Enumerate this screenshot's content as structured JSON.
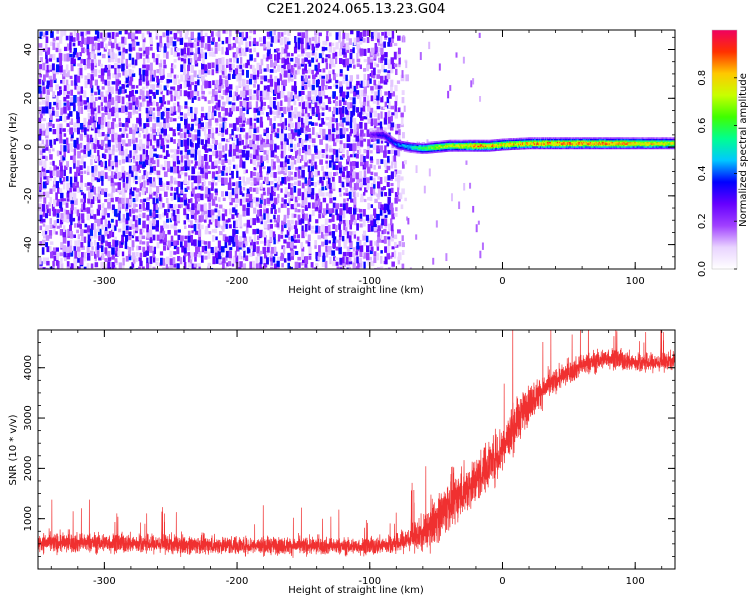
{
  "title": "C2E1.2024.065.13.23.G04",
  "chart_data": [
    {
      "type": "heatmap",
      "xlabel": "Height of straight line (km)",
      "ylabel": "Frequency (Hz)",
      "xlim": [
        -350,
        130
      ],
      "ylim": [
        -50,
        48
      ],
      "xticks": [
        -300,
        -200,
        -100,
        0,
        100
      ],
      "yticks": [
        -40,
        -20,
        0,
        20,
        40
      ],
      "colorbar": {
        "label": "Normalized spectral amplitude",
        "range": [
          0,
          1
        ],
        "ticks": [
          0.0,
          0.2,
          0.4,
          0.6,
          0.8
        ],
        "colormap": [
          "#ffffff",
          "#e9d3ff",
          "#a040ff",
          "#6600ff",
          "#0000ff",
          "#00c8ff",
          "#00ff90",
          "#40ff00",
          "#c8ff00",
          "#ffc800",
          "#ff3000",
          "#f00060"
        ]
      },
      "signal_track": [
        {
          "x": -100,
          "freq": 5.0,
          "amp": 0.25
        },
        {
          "x": -90,
          "freq": 5.0,
          "amp": 0.35
        },
        {
          "x": -80,
          "freq": 1.0,
          "amp": 0.4
        },
        {
          "x": -70,
          "freq": 0.0,
          "amp": 0.5
        },
        {
          "x": -60,
          "freq": -0.5,
          "amp": 0.6
        },
        {
          "x": -50,
          "freq": 0.0,
          "amp": 0.7
        },
        {
          "x": -40,
          "freq": 0.5,
          "amp": 0.72
        },
        {
          "x": -30,
          "freq": 0.5,
          "amp": 0.75
        },
        {
          "x": -20,
          "freq": 0.5,
          "amp": 0.85
        },
        {
          "x": -10,
          "freq": 0.5,
          "amp": 0.8
        },
        {
          "x": 0,
          "freq": 1.0,
          "amp": 0.78
        },
        {
          "x": 20,
          "freq": 1.5,
          "amp": 0.82
        },
        {
          "x": 40,
          "freq": 1.5,
          "amp": 0.85
        },
        {
          "x": 60,
          "freq": 1.5,
          "amp": 0.85
        },
        {
          "x": 80,
          "freq": 1.5,
          "amp": 0.85
        },
        {
          "x": 100,
          "freq": 1.5,
          "amp": 0.82
        },
        {
          "x": 120,
          "freq": 1.5,
          "amp": 0.78
        },
        {
          "x": 130,
          "freq": 1.5,
          "amp": 0.72
        }
      ],
      "noise_region": [
        -350,
        -85
      ]
    },
    {
      "type": "line",
      "xlabel": "Height of straight line (km)",
      "ylabel": "SNR (10 * v/v)",
      "xlim": [
        -350,
        130
      ],
      "ylim": [
        0,
        4750
      ],
      "xticks": [
        -300,
        -200,
        -100,
        0,
        100
      ],
      "yticks": [
        1000,
        2000,
        3000,
        4000
      ],
      "series": [
        {
          "color": "#f03030",
          "envelope": [
            {
              "x": -350,
              "mean": 520,
              "spread": 260
            },
            {
              "x": -300,
              "mean": 520,
              "spread": 260
            },
            {
              "x": -250,
              "mean": 490,
              "spread": 250
            },
            {
              "x": -200,
              "mean": 470,
              "spread": 240
            },
            {
              "x": -150,
              "mean": 460,
              "spread": 230
            },
            {
              "x": -120,
              "mean": 450,
              "spread": 220
            },
            {
              "x": -100,
              "mean": 450,
              "spread": 230
            },
            {
              "x": -80,
              "mean": 500,
              "spread": 260
            },
            {
              "x": -60,
              "mean": 700,
              "spread": 450
            },
            {
              "x": -50,
              "mean": 1000,
              "spread": 650
            },
            {
              "x": -40,
              "mean": 1300,
              "spread": 700
            },
            {
              "x": -30,
              "mean": 1550,
              "spread": 650
            },
            {
              "x": -20,
              "mean": 1750,
              "spread": 650
            },
            {
              "x": -10,
              "mean": 2100,
              "spread": 650
            },
            {
              "x": 0,
              "mean": 2400,
              "spread": 700
            },
            {
              "x": 10,
              "mean": 2900,
              "spread": 600
            },
            {
              "x": 20,
              "mean": 3300,
              "spread": 500
            },
            {
              "x": 30,
              "mean": 3550,
              "spread": 400
            },
            {
              "x": 40,
              "mean": 3750,
              "spread": 300
            },
            {
              "x": 60,
              "mean": 4050,
              "spread": 300
            },
            {
              "x": 80,
              "mean": 4200,
              "spread": 280
            },
            {
              "x": 100,
              "mean": 4100,
              "spread": 260
            },
            {
              "x": 120,
              "mean": 4100,
              "spread": 250
            },
            {
              "x": 130,
              "mean": 4150,
              "spread": 230
            }
          ]
        }
      ]
    }
  ]
}
